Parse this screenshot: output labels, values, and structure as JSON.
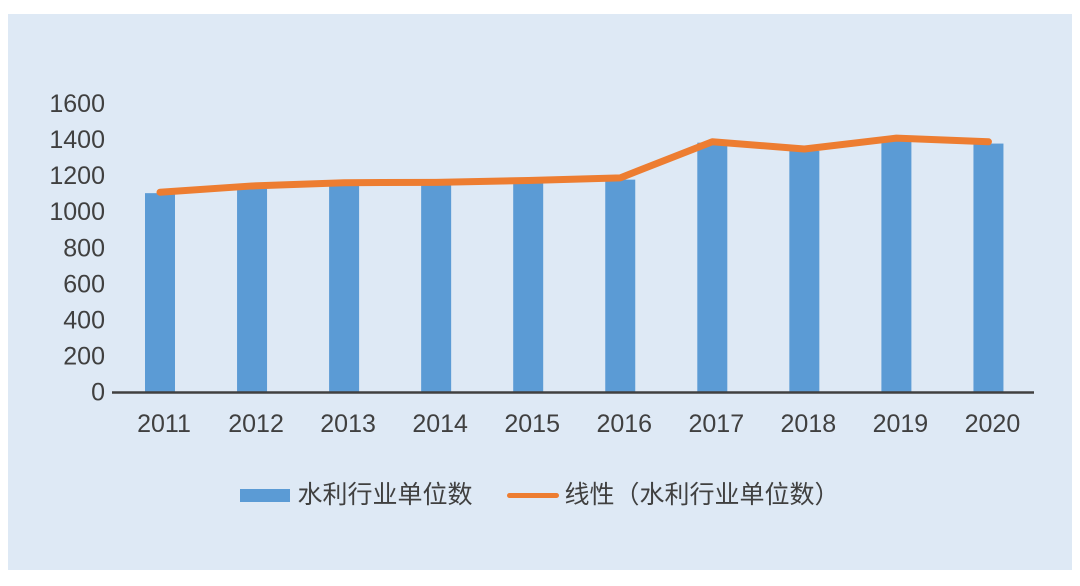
{
  "chart_data": {
    "type": "bar",
    "title": "",
    "categories": [
      "2011",
      "2012",
      "2013",
      "2014",
      "2015",
      "2016",
      "2017",
      "2018",
      "2019",
      "2020"
    ],
    "series": [
      {
        "name": "水利行业单位数",
        "type": "bar",
        "color": "#5B9BD5",
        "values": [
          1100,
          1125,
          1145,
          1145,
          1155,
          1175,
          1380,
          1335,
          1395,
          1375
        ]
      },
      {
        "name": "线性（水利行业单位数）",
        "type": "line",
        "color": "#ED7D31",
        "values": [
          1105,
          1140,
          1158,
          1160,
          1170,
          1185,
          1385,
          1345,
          1405,
          1385
        ]
      }
    ],
    "xlabel": "",
    "ylabel": "",
    "ylim": [
      0,
      1600
    ],
    "yticks": [
      0,
      200,
      400,
      600,
      800,
      1000,
      1200,
      1400,
      1600
    ],
    "grid": false,
    "legend_position": "bottom"
  },
  "legend": {
    "items": [
      {
        "label": "水利行业单位数",
        "color": "#5B9BD5",
        "shape": "bar"
      },
      {
        "label": "线性（水利行业单位数）",
        "color": "#ED7D31",
        "shape": "line"
      }
    ]
  },
  "colors": {
    "page_bg": "#FFFFFF",
    "panel_bg": "#DEE9F5",
    "bar": "#5B9BD5",
    "line": "#ED7D31",
    "axis": "#404040",
    "text": "#404040"
  }
}
